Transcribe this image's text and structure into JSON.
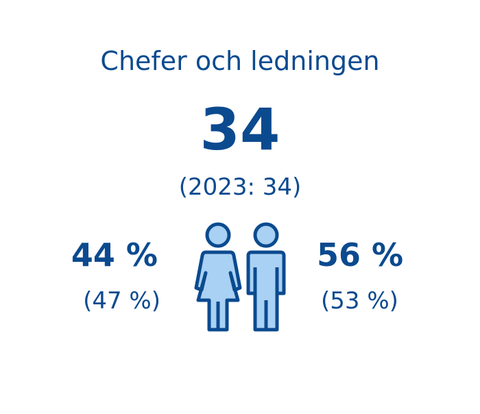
{
  "title": "Chefer och ledningen",
  "total": {
    "value": "34",
    "previous": "(2023: 34)"
  },
  "women": {
    "share": "44 %",
    "previous": "(47 %)"
  },
  "men": {
    "share": "56 %",
    "previous": "(53 %)"
  }
}
